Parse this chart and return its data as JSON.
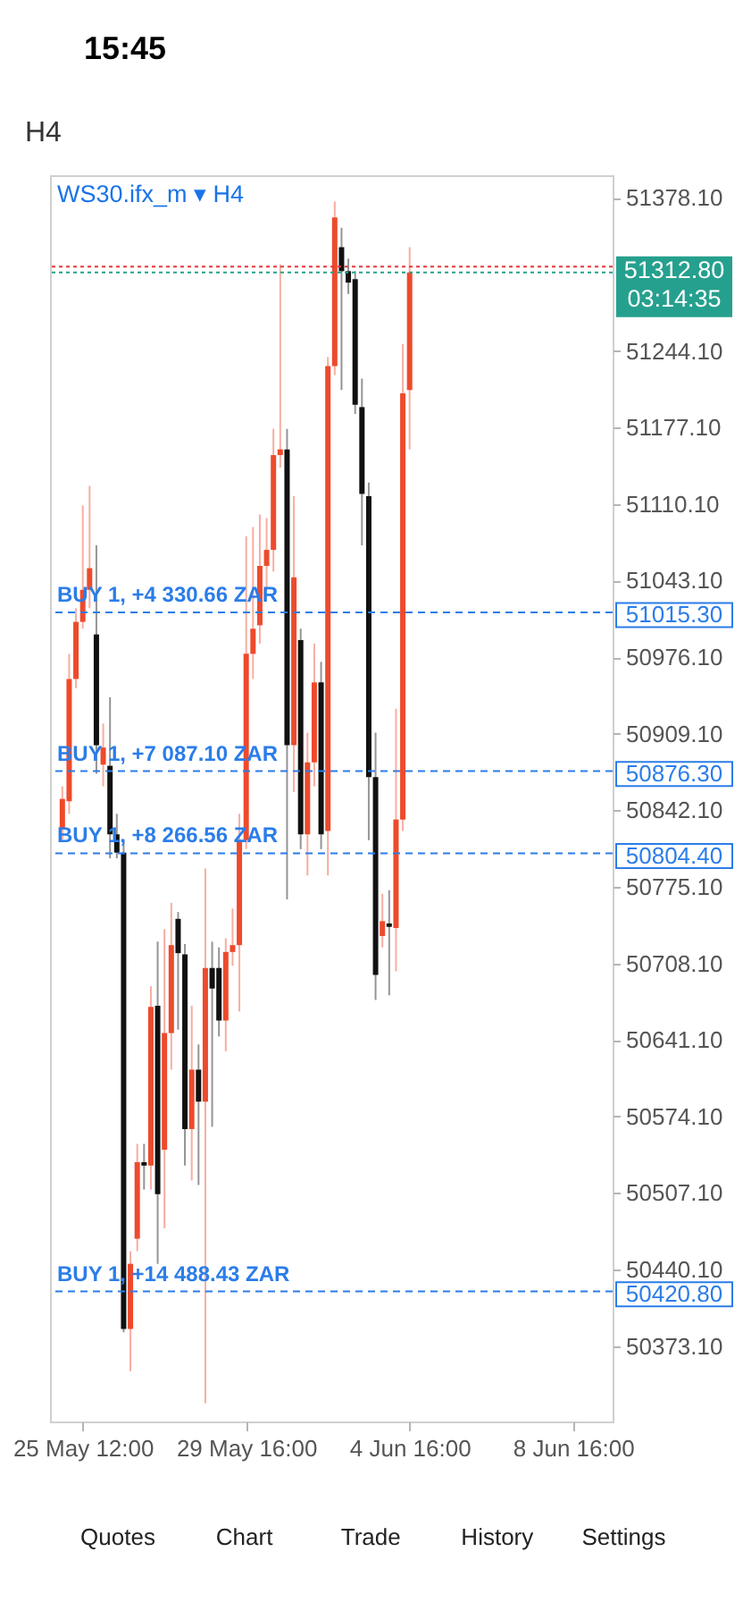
{
  "chart_data": {
    "type": "candlestick",
    "title": "WS30.ifx_m ▾ H4",
    "categories": [
      null,
      null,
      null,
      "25 May 12:00",
      null,
      null,
      null,
      null,
      null,
      null,
      null,
      null,
      null,
      null,
      null,
      null,
      null,
      null,
      null,
      null,
      null,
      null,
      null,
      null,
      null,
      null,
      null,
      "29 May 16:00",
      null,
      null,
      null,
      null,
      null,
      null,
      null,
      null,
      null,
      null,
      null,
      null,
      null,
      null,
      null,
      null,
      null,
      null,
      null,
      null,
      null,
      null,
      null,
      "4 Jun 16:00",
      null,
      null,
      null,
      null,
      null,
      null,
      null,
      null,
      null,
      null,
      null,
      null,
      null,
      null,
      null,
      null,
      null,
      null,
      null,
      null,
      null,
      null,
      null,
      "8 Jun 16:00",
      null,
      null,
      null,
      null
    ],
    "ohlc": [
      [
        50826,
        50863,
        50816,
        50852
      ],
      [
        50850,
        50979,
        50839,
        50957
      ],
      [
        50957,
        51019,
        50949,
        51007
      ],
      [
        51007,
        51109,
        51001,
        51035
      ],
      [
        51035,
        51126,
        51019,
        51054
      ],
      [
        50996,
        51074,
        50874,
        50899
      ],
      [
        50882,
        50918,
        50863,
        50897
      ],
      [
        50881,
        50941,
        50800,
        50821
      ],
      [
        50821,
        50839,
        50800,
        50805
      ],
      [
        50805,
        50816,
        50385,
        50388
      ],
      [
        50388,
        50456,
        50351,
        50445
      ],
      [
        50467,
        50550,
        50456,
        50534
      ],
      [
        50534,
        50550,
        50510,
        50531
      ],
      [
        50531,
        50688,
        50510,
        50670
      ],
      [
        50671,
        50727,
        50445,
        50506
      ],
      [
        50545,
        50738,
        50476,
        50647
      ],
      [
        50647,
        50761,
        50615,
        50724
      ],
      [
        50747,
        50753,
        50650,
        50717
      ],
      [
        50716,
        50725,
        50531,
        50563
      ],
      [
        50563,
        50671,
        50518,
        50615
      ],
      [
        50615,
        50637,
        50514,
        50587
      ],
      [
        50587,
        50791,
        50323,
        50704
      ],
      [
        50704,
        50727,
        50565,
        50686
      ],
      [
        50704,
        50722,
        50644,
        50658
      ],
      [
        50658,
        50730,
        50631,
        50718
      ],
      [
        50718,
        50756,
        50706,
        50724
      ],
      [
        50724,
        50839,
        50666,
        50816
      ],
      [
        50816,
        51082,
        50808,
        50979
      ],
      [
        50979,
        51090,
        50957,
        51001
      ],
      [
        51004,
        51101,
        50988,
        51056
      ],
      [
        51056,
        51098,
        51035,
        51070
      ],
      [
        51070,
        51176,
        51051,
        51153
      ],
      [
        51153,
        51320,
        51142,
        51158
      ],
      [
        51158,
        51176,
        50764,
        50899
      ],
      [
        50899,
        51117,
        50858,
        51046
      ],
      [
        50991,
        51001,
        50808,
        50821
      ],
      [
        50821,
        50910,
        50785,
        50884
      ],
      [
        50884,
        50988,
        50863,
        50954
      ],
      [
        50954,
        50972,
        50808,
        50821
      ],
      [
        50824,
        51239,
        50785,
        51231
      ],
      [
        51231,
        51375,
        51223,
        51361
      ],
      [
        51335,
        51352,
        51210,
        51314
      ],
      [
        51314,
        51325,
        51294,
        51304
      ],
      [
        51307,
        51314,
        51189,
        51197
      ],
      [
        51195,
        51220,
        51074,
        51119
      ],
      [
        51117,
        51129,
        50816,
        50871
      ],
      [
        50871,
        50910,
        50676,
        50698
      ],
      [
        50732,
        50769,
        50722,
        50745
      ],
      [
        50743,
        50772,
        50680,
        50740
      ],
      [
        50739,
        50931,
        50701,
        50834
      ],
      [
        50834,
        51250,
        50824,
        51207
      ],
      [
        51210,
        51335,
        51158,
        51312.8
      ],
      null,
      null,
      null,
      null,
      null,
      null,
      null,
      null,
      null,
      null,
      null,
      null,
      null,
      null,
      null,
      null,
      null,
      null,
      null,
      null,
      null,
      null,
      null,
      null,
      null,
      null,
      null,
      null
    ],
    "colors": [
      "#ee4a2c",
      "#ee4a2c",
      "#ee4a2c",
      "#ee4a2c",
      "#ee4a2c",
      "#111111",
      "#ee4a2c",
      "#111111",
      "#111111",
      "#111111",
      "#ee4a2c",
      "#ee4a2c",
      "#111111",
      "#ee4a2c",
      "#111111",
      "#ee4a2c",
      "#ee4a2c",
      "#111111",
      "#111111",
      "#ee4a2c",
      "#111111",
      "#ee4a2c",
      "#111111",
      "#111111",
      "#ee4a2c",
      "#ee4a2c",
      "#ee4a2c",
      "#ee4a2c",
      "#ee4a2c",
      "#ee4a2c",
      "#ee4a2c",
      "#ee4a2c",
      "#ee4a2c",
      "#111111",
      "#ee4a2c",
      "#111111",
      "#ee4a2c",
      "#ee4a2c",
      "#111111",
      "#ee4a2c",
      "#ee4a2c",
      "#111111",
      "#111111",
      "#111111",
      "#111111",
      "#111111",
      "#111111",
      "#ee4a2c",
      "#111111",
      "#ee4a2c",
      "#ee4a2c",
      "#ee4a2c",
      null,
      null,
      null,
      null,
      null,
      null,
      null,
      null,
      null,
      null,
      null,
      null,
      null,
      null,
      null,
      null,
      null,
      null,
      null,
      null,
      null,
      null,
      null,
      null,
      null,
      null,
      null,
      null
    ],
    "ylim": [
      50307,
      51398
    ],
    "yticks": [
      {
        "value": 51378.1,
        "label": "51378.10"
      },
      {
        "value": 51244.1,
        "label": "51244.10"
      },
      {
        "value": 51177.1,
        "label": "51177.10"
      },
      {
        "value": 51110.1,
        "label": "51110.10"
      },
      {
        "value": 51043.1,
        "label": "51043.10"
      },
      {
        "value": 50976.1,
        "label": "50976.10"
      },
      {
        "value": 50909.1,
        "label": "50909.10"
      },
      {
        "value": 50842.1,
        "label": "50842.10"
      },
      {
        "value": 50775.1,
        "label": "50775.10"
      },
      {
        "value": 50708.1,
        "label": "50708.10"
      },
      {
        "value": 50641.1,
        "label": "50641.10"
      },
      {
        "value": 50574.1,
        "label": "50574.10"
      },
      {
        "value": 50507.1,
        "label": "50507.10"
      },
      {
        "value": 50440.1,
        "label": "50440.10"
      },
      {
        "value": 50373.1,
        "label": "50373.10"
      }
    ],
    "ref_lines": [
      {
        "axis": "y",
        "value": 51318,
        "color": "#e53935",
        "line_style": "dotted"
      },
      {
        "axis": "y",
        "value": 51312.8,
        "label": "51312.80 03:14:35",
        "color": "#26a08e",
        "line_style": "dotted"
      },
      {
        "axis": "y",
        "value": 51015.3,
        "label": "51015.30",
        "color": "#2b7de9",
        "line_style": "dashed"
      },
      {
        "axis": "y",
        "value": 50876.3,
        "label": "50876.30",
        "color": "#2b7de9",
        "line_style": "dashed"
      },
      {
        "axis": "y",
        "value": 50804.4,
        "label": "50804.40",
        "color": "#2b7de9",
        "line_style": "dashed"
      },
      {
        "axis": "y",
        "value": 50420.8,
        "label": "50420.80",
        "color": "#2b7de9",
        "line_style": "dashed"
      }
    ],
    "annotations": [
      {
        "text": "BUY 1, +4 330.66 ZAR",
        "y": 51015.3
      },
      {
        "text": "BUY 1, +7 087.10 ZAR",
        "y": 50876.3
      },
      {
        "text": "BUY 1, +8 266.56 ZAR",
        "y": 50804.4
      },
      {
        "text": "BUY 1, +14 488.43 ZAR",
        "y": 50420.8
      },
      "15:45",
      "H4",
      "Quotes",
      "Chart",
      "Trade",
      "History",
      "Settings"
    ]
  }
}
